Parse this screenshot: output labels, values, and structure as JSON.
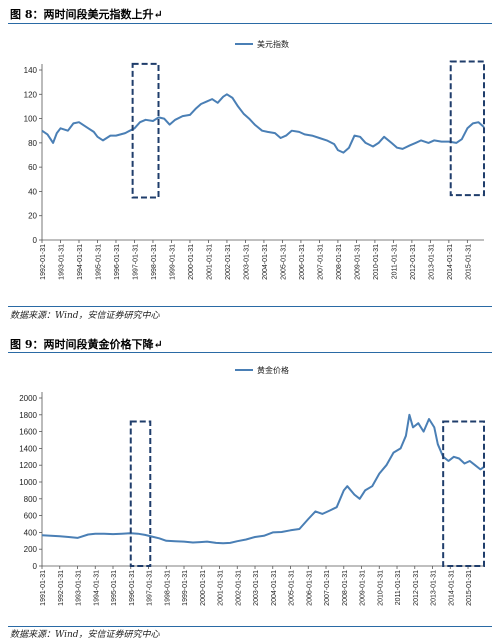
{
  "figure1": {
    "title": "图 8：两时间段美元指数上升↵",
    "source": "数据来源：Wind，安信证券研究中心"
  },
  "figure2": {
    "title": "图 9：两时间段黄金价格下降↵",
    "source": "数据来源：Wind，安信证券研究中心"
  },
  "colors": {
    "line": "#4a7fb5",
    "rule": "#2a6aa5",
    "box": "#1f3d6b"
  },
  "chart_data": [
    {
      "type": "line",
      "title": "",
      "xlabel": "",
      "ylabel": "",
      "ylim": [
        0,
        140
      ],
      "yticks": [
        "0",
        "20",
        "40",
        "60",
        "80",
        "100",
        "120",
        "140"
      ],
      "xticks": [
        "1992-01-31",
        "1993-01-31",
        "1994-01-31",
        "1995-01-31",
        "1996-01-31",
        "1997-01-31",
        "1998-01-31",
        "1999-01-31",
        "2000-01-31",
        "2001-01-31",
        "2002-01-31",
        "2003-01-31",
        "2004-01-31",
        "2005-01-31",
        "2006-01-31",
        "2007-01-31",
        "2008-01-31",
        "2009-01-31",
        "2010-01-31",
        "2011-01-31",
        "2012-01-31",
        "2013-01-31",
        "2014-01-31",
        "2015-01-31"
      ],
      "xrange": [
        1992.0,
        2015.9
      ],
      "legend": "top-center",
      "grid": false,
      "series": [
        {
          "name": "美元指数",
          "x": [
            1992.0,
            1992.3,
            1992.6,
            1992.8,
            1993.0,
            1993.4,
            1993.7,
            1994.0,
            1994.4,
            1994.8,
            1995.0,
            1995.3,
            1995.7,
            1996.0,
            1996.5,
            1997.0,
            1997.3,
            1997.6,
            1998.0,
            1998.3,
            1998.6,
            1998.9,
            1999.2,
            1999.6,
            2000.0,
            2000.3,
            2000.6,
            2000.9,
            2001.2,
            2001.5,
            2001.8,
            2002.0,
            2002.3,
            2002.6,
            2002.9,
            2003.2,
            2003.5,
            2003.9,
            2004.2,
            2004.6,
            2004.9,
            2005.2,
            2005.5,
            2005.9,
            2006.2,
            2006.6,
            2007.0,
            2007.4,
            2007.8,
            2008.0,
            2008.3,
            2008.6,
            2008.9,
            2009.2,
            2009.5,
            2009.9,
            2010.2,
            2010.5,
            2010.9,
            2011.2,
            2011.5,
            2011.9,
            2012.2,
            2012.5,
            2012.9,
            2013.2,
            2013.6,
            2014.0,
            2014.4,
            2014.7,
            2015.0,
            2015.3,
            2015.6,
            2015.9
          ],
          "values": [
            90,
            87,
            80,
            88,
            92,
            90,
            96,
            97,
            93,
            89,
            85,
            82,
            86,
            86,
            88,
            92,
            97,
            99,
            98,
            101,
            100,
            95,
            99,
            102,
            103,
            108,
            112,
            114,
            116,
            113,
            118,
            120,
            117,
            110,
            104,
            100,
            95,
            90,
            89,
            88,
            84,
            86,
            90,
            89,
            87,
            86,
            84,
            82,
            79,
            74,
            72,
            76,
            86,
            85,
            80,
            77,
            80,
            85,
            80,
            76,
            75,
            78,
            80,
            82,
            80,
            82,
            81,
            81,
            80,
            83,
            92,
            96,
            97,
            93
          ]
        }
      ],
      "highlight_boxes": [
        {
          "x0": 1996.9,
          "x1": 1998.3,
          "y0": 35,
          "y1": 145
        },
        {
          "x0": 2014.1,
          "x1": 2015.9,
          "y0": 37,
          "y1": 147
        }
      ]
    },
    {
      "type": "line",
      "title": "",
      "xlabel": "",
      "ylabel": "",
      "ylim": [
        0,
        2000
      ],
      "yticks": [
        "0",
        "200",
        "400",
        "600",
        "800",
        "1000",
        "1200",
        "1400",
        "1600",
        "1800",
        "2000"
      ],
      "xticks": [
        "1991-01-31",
        "1992-01-31",
        "1993-01-31",
        "1994-01-31",
        "1995-01-31",
        "1996-01-31",
        "1997-01-31",
        "1998-01-31",
        "1999-01-31",
        "2000-01-31",
        "2001-01-31",
        "2002-01-31",
        "2003-01-31",
        "2004-01-31",
        "2005-01-31",
        "2006-01-31",
        "2007-01-31",
        "2008-01-31",
        "2009-01-31",
        "2010-01-31",
        "2011-01-31",
        "2012-01-31",
        "2013-01-31",
        "2014-01-31",
        "2015-01-31"
      ],
      "xrange": [
        1991.0,
        2015.9
      ],
      "legend": "top-center",
      "grid": false,
      "series": [
        {
          "name": "黄金价格",
          "x": [
            1991.0,
            1991.5,
            1992.0,
            1992.5,
            1993.0,
            1993.6,
            1994.0,
            1994.5,
            1995.0,
            1995.5,
            1996.0,
            1996.4,
            1996.8,
            1997.2,
            1997.6,
            1998.0,
            1998.5,
            1999.0,
            1999.5,
            1999.9,
            2000.3,
            2000.8,
            2001.2,
            2001.6,
            2002.0,
            2002.5,
            2003.0,
            2003.5,
            2004.0,
            2004.5,
            2005.0,
            2005.5,
            2006.0,
            2006.4,
            2006.8,
            2007.2,
            2007.6,
            2008.0,
            2008.2,
            2008.6,
            2008.9,
            2009.2,
            2009.6,
            2010.0,
            2010.4,
            2010.8,
            2011.2,
            2011.5,
            2011.7,
            2011.9,
            2012.2,
            2012.5,
            2012.8,
            2013.1,
            2013.3,
            2013.6,
            2013.9,
            2014.2,
            2014.5,
            2014.8,
            2015.1,
            2015.4,
            2015.7,
            2015.9
          ],
          "values": [
            365,
            360,
            355,
            345,
            335,
            375,
            385,
            385,
            380,
            385,
            390,
            385,
            370,
            350,
            330,
            300,
            295,
            290,
            280,
            285,
            290,
            275,
            270,
            275,
            295,
            315,
            345,
            360,
            400,
            405,
            425,
            440,
            560,
            650,
            620,
            660,
            700,
            900,
            950,
            850,
            800,
            900,
            950,
            1100,
            1200,
            1350,
            1400,
            1550,
            1800,
            1650,
            1700,
            1600,
            1750,
            1650,
            1450,
            1300,
            1250,
            1300,
            1280,
            1220,
            1250,
            1200,
            1150,
            1180
          ]
        }
      ],
      "highlight_boxes": [
        {
          "x0": 1996.0,
          "x1": 1997.1,
          "y0": 0,
          "y1": 1720
        },
        {
          "x0": 2013.6,
          "x1": 2015.9,
          "y0": 0,
          "y1": 1720
        }
      ]
    }
  ]
}
